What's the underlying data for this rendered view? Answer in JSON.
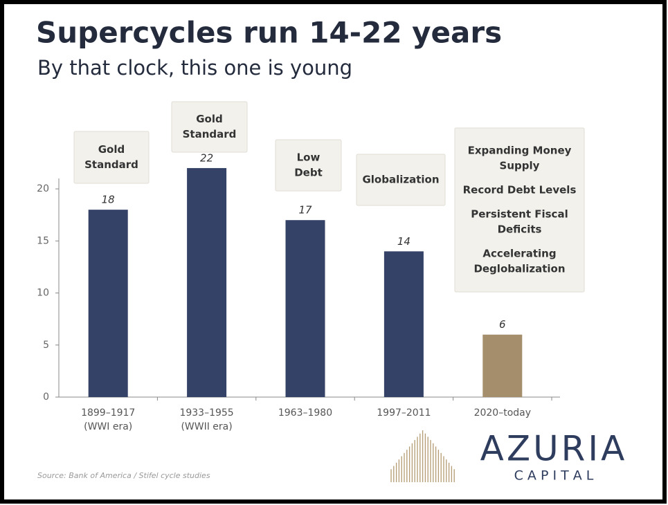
{
  "chart_data": {
    "type": "bar",
    "title": "Supercycles run 14-22 years",
    "subtitle": "By that clock, this one is young",
    "categories": [
      [
        "1899–1917",
        "(WWI era)"
      ],
      [
        "1933–1955",
        "(WWII era)"
      ],
      [
        "1963–1980"
      ],
      [
        "1997–2011"
      ],
      [
        "2020–today"
      ]
    ],
    "values": [
      18,
      22,
      17,
      14,
      6
    ],
    "colors": [
      "#334266",
      "#334266",
      "#334266",
      "#334266",
      "#a58e6c"
    ],
    "ylim": [
      0,
      21
    ],
    "yticks": [
      0,
      5,
      10,
      15,
      20
    ],
    "grid": false,
    "annotations": [
      [
        [
          "Gold",
          "Standard"
        ]
      ],
      [
        [
          "Gold",
          "Standard"
        ]
      ],
      [
        [
          "Low",
          "Debt"
        ]
      ],
      [
        [
          "Globalization"
        ]
      ],
      [
        [
          "Expanding Money",
          "Supply"
        ],
        [
          "Record Debt Levels"
        ],
        [
          "Persistent Fiscal",
          "Deficits"
        ],
        [
          "Accelerating",
          "Deglobalization"
        ]
      ]
    ],
    "source": "Source: Bank of America / Stifel cycle studies",
    "logo": {
      "name": "AZURIA",
      "sub": "C A P I T A L"
    }
  }
}
